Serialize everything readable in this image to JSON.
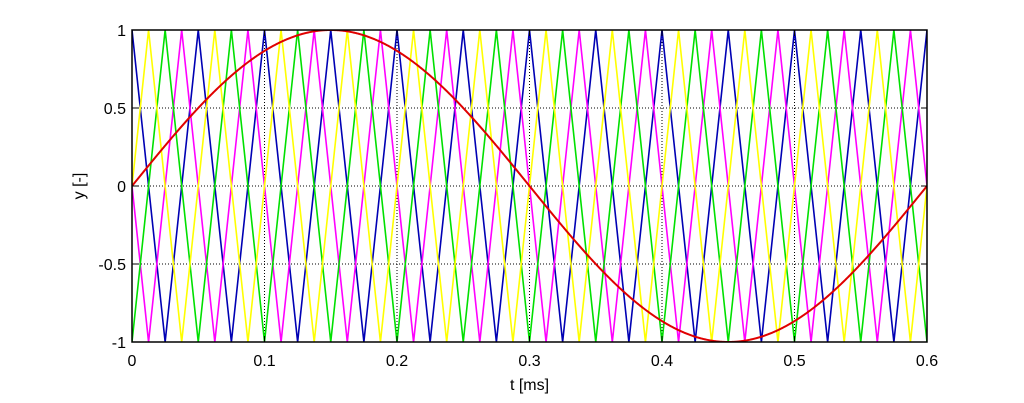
{
  "chart_data": {
    "type": "line",
    "title": "",
    "xlabel": "t [ms]",
    "ylabel": "y [-]",
    "xlim": [
      0,
      0.6
    ],
    "ylim": [
      -1,
      1
    ],
    "xticks": [
      0,
      0.1,
      0.2,
      0.3,
      0.4,
      0.5,
      0.6
    ],
    "xtick_labels": [
      "0",
      "0.1",
      "0.2",
      "0.3",
      "0.4",
      "0.5",
      "0.6"
    ],
    "yticks": [
      -1,
      -0.5,
      0,
      0.5,
      1
    ],
    "ytick_labels": [
      "-1",
      "-0.5",
      "0",
      "0.5",
      "1"
    ],
    "grid": true,
    "grid_style": "dotted",
    "legend": "none",
    "series": [
      {
        "kind": "triangle",
        "color": "#0000b4",
        "period_ms": 0.05,
        "phase": 0.0
      },
      {
        "kind": "triangle",
        "color": "#ff00ff",
        "period_ms": 0.05,
        "phase": 0.25
      },
      {
        "kind": "triangle",
        "color": "#00e000",
        "period_ms": 0.05,
        "phase": 0.5
      },
      {
        "kind": "triangle",
        "color": "#ffff00",
        "period_ms": 0.05,
        "phase": 0.75
      },
      {
        "kind": "sine",
        "color": "#e00000",
        "period_ms": 0.6,
        "amplitude": 1
      }
    ]
  }
}
